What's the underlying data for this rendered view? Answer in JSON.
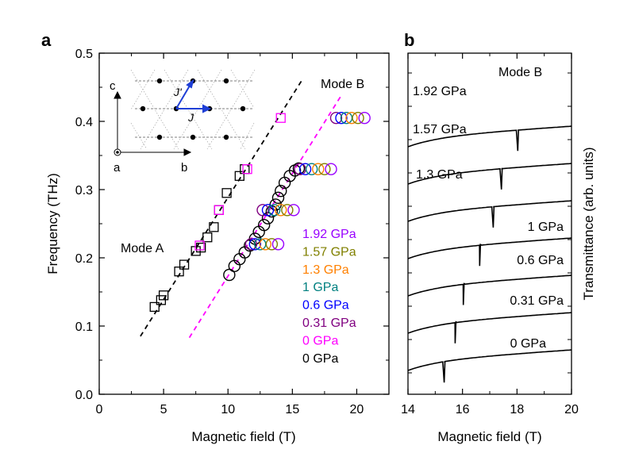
{
  "chart_data": [
    {
      "panel": "a",
      "type": "scatter",
      "xlabel": "Magnetic field (T)",
      "ylabel": "Frequency (THz)",
      "xlim": [
        0,
        22.5
      ],
      "ylim": [
        0,
        0.5
      ],
      "x_ticks": [
        "0",
        "5",
        "10",
        "15",
        "20"
      ],
      "y_ticks": [
        "0.0",
        "0.1",
        "0.2",
        "0.3",
        "0.4",
        "0.5"
      ],
      "annotations": {
        "mode_a": "Mode A",
        "mode_b": "Mode B"
      },
      "lines": [
        {
          "name": "Mode A fit",
          "color": "#000000",
          "dash": true,
          "points": [
            [
              3.2,
              0.085
            ],
            [
              15.8,
              0.462
            ]
          ]
        },
        {
          "name": "Mode B fit",
          "color": "#ff00ff",
          "dash": true,
          "points": [
            [
              7.0,
              0.083
            ],
            [
              18.8,
              0.438
            ]
          ]
        }
      ],
      "legend": {
        "placement": "lower-right",
        "entries": [
          {
            "label": "1.92 GPa",
            "color": "#9900ff"
          },
          {
            "label": "1.57 GPa",
            "color": "#808000"
          },
          {
            "label": "1.3 GPa",
            "color": "#ff8000"
          },
          {
            "label": "1 GPa",
            "color": "#008080"
          },
          {
            "label": "0.6 GPa",
            "color": "#0000ff"
          },
          {
            "label": "0.31 GPa",
            "color": "#800080"
          },
          {
            "label": "0 GPa",
            "color": "#ff00ff"
          },
          {
            "label": "0 GPa",
            "color": "#000000"
          }
        ]
      },
      "series": [
        {
          "label_ref": "0 GPa (squares)",
          "marker": "square",
          "color": "#000000",
          "points": [
            [
              4.3,
              0.128
            ],
            [
              4.8,
              0.138
            ],
            [
              5.0,
              0.145
            ],
            [
              6.2,
              0.18
            ],
            [
              6.6,
              0.19
            ],
            [
              7.5,
              0.21
            ],
            [
              7.9,
              0.215
            ],
            [
              8.4,
              0.23
            ],
            [
              8.9,
              0.245
            ],
            [
              9.3,
              0.27
            ],
            [
              9.9,
              0.295
            ],
            [
              10.9,
              0.32
            ],
            [
              11.3,
              0.33
            ]
          ]
        },
        {
          "label_ref": "0 GPa (magenta squares)",
          "marker": "square",
          "color": "#ff00ff",
          "points": [
            [
              7.8,
              0.218
            ],
            [
              9.3,
              0.27
            ],
            [
              11.5,
              0.33
            ],
            [
              14.1,
              0.405
            ]
          ]
        },
        {
          "label_ref": "0 GPa (circles)",
          "marker": "circle",
          "color": "#000000",
          "points": [
            [
              10.1,
              0.175
            ],
            [
              10.5,
              0.188
            ],
            [
              10.9,
              0.198
            ],
            [
              11.3,
              0.208
            ],
            [
              11.7,
              0.218
            ],
            [
              12.1,
              0.228
            ],
            [
              12.4,
              0.238
            ],
            [
              12.8,
              0.248
            ],
            [
              13.1,
              0.258
            ],
            [
              13.4,
              0.268
            ],
            [
              13.7,
              0.278
            ],
            [
              13.9,
              0.288
            ],
            [
              14.1,
              0.298
            ],
            [
              14.4,
              0.31
            ],
            [
              14.8,
              0.32
            ],
            [
              15.2,
              0.328
            ],
            [
              15.5,
              0.331
            ]
          ]
        },
        {
          "label_ref": "0.31 GPa",
          "marker": "circle",
          "color": "#800080",
          "points": [
            [
              11.8,
              0.22
            ],
            [
              12.7,
              0.27
            ],
            [
              15.6,
              0.33
            ],
            [
              18.4,
              0.405
            ]
          ]
        },
        {
          "label_ref": "0.6 GPa",
          "marker": "circle",
          "color": "#0000ff",
          "points": [
            [
              12.1,
              0.22
            ],
            [
              13.1,
              0.27
            ],
            [
              16.0,
              0.33
            ],
            [
              18.8,
              0.405
            ]
          ]
        },
        {
          "label_ref": "1 GPa",
          "marker": "circle",
          "color": "#008080",
          "points": [
            [
              12.5,
              0.22
            ],
            [
              13.6,
              0.27
            ],
            [
              16.5,
              0.33
            ],
            [
              19.2,
              0.405
            ]
          ]
        },
        {
          "label_ref": "1.3 GPa",
          "marker": "circle",
          "color": "#ff8000",
          "points": [
            [
              12.9,
              0.22
            ],
            [
              14.1,
              0.27
            ],
            [
              17.0,
              0.33
            ],
            [
              19.6,
              0.405
            ]
          ]
        },
        {
          "label_ref": "1.57 GPa",
          "marker": "circle",
          "color": "#808000",
          "points": [
            [
              13.4,
              0.22
            ],
            [
              14.6,
              0.27
            ],
            [
              17.5,
              0.33
            ],
            [
              20.1,
              0.405
            ]
          ]
        },
        {
          "label_ref": "1.92 GPa",
          "marker": "circle",
          "color": "#9900ff",
          "points": [
            [
              13.9,
              0.22
            ],
            [
              15.1,
              0.27
            ],
            [
              18.0,
              0.33
            ],
            [
              20.6,
              0.405
            ]
          ]
        }
      ],
      "inset": {
        "axis_labels": [
          "c",
          "a",
          "b"
        ],
        "bond_labels": [
          "J'",
          "J"
        ]
      }
    },
    {
      "panel": "b",
      "type": "line",
      "xlabel": "Magnetic field (T)",
      "ylabel": "Transmittance (arb. units)",
      "xlim": [
        14,
        20
      ],
      "x_ticks": [
        "14",
        "16",
        "18",
        "20"
      ],
      "annotation": "Mode B",
      "series": [
        {
          "name": "1.92 GPa",
          "dip_field": 18.0,
          "offset": 6
        },
        {
          "name": "1.57 GPa",
          "dip_field": 17.4,
          "offset": 5
        },
        {
          "name": "1.3 GPa",
          "dip_field": 17.1,
          "offset": 4
        },
        {
          "name": "1 GPa",
          "dip_field": 16.6,
          "offset": 3
        },
        {
          "name": "0.6 GPa",
          "dip_field": 16.0,
          "offset": 2
        },
        {
          "name": "0.31 GPa",
          "dip_field": 15.7,
          "offset": 1
        },
        {
          "name": "0 GPa",
          "dip_field": 15.3,
          "offset": 0
        }
      ]
    }
  ],
  "panel_labels": {
    "a": "a",
    "b": "b"
  }
}
